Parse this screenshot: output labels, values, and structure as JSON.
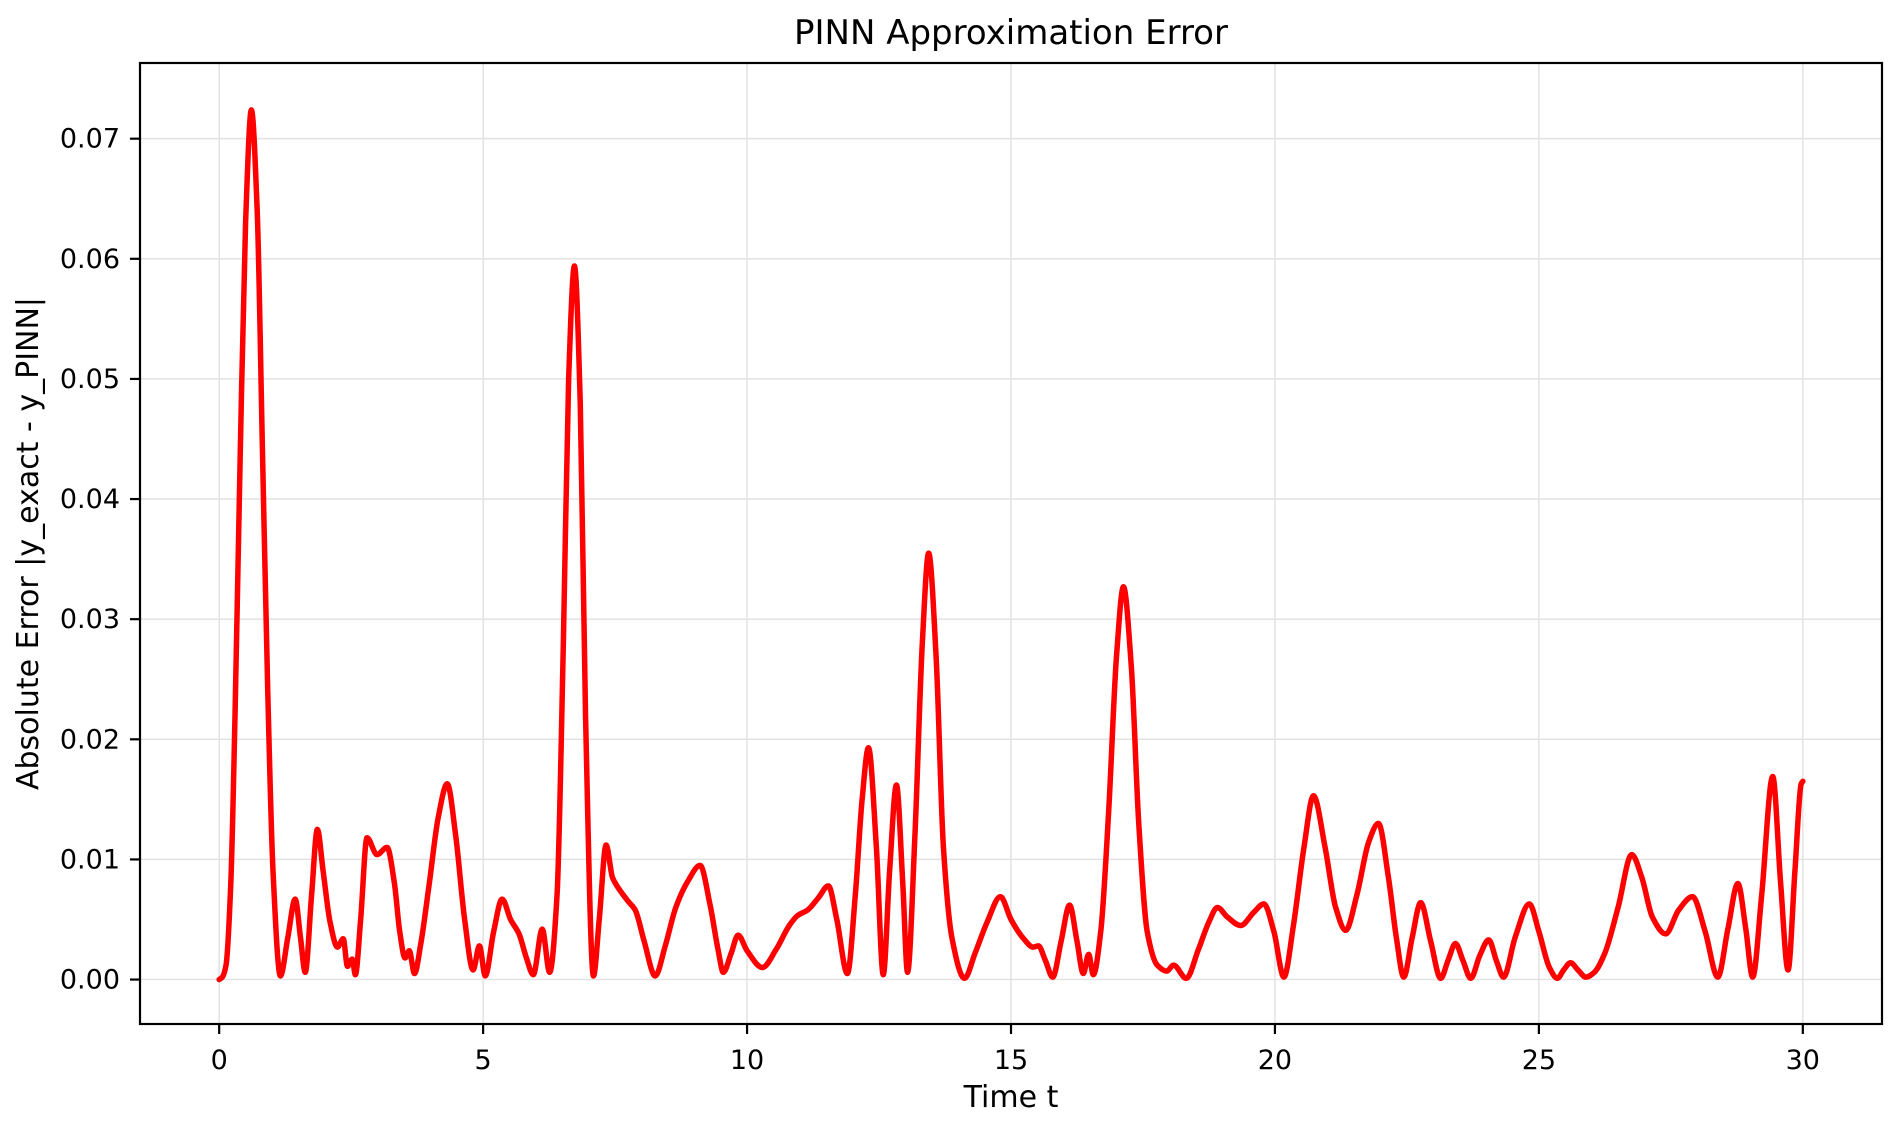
{
  "chart_data": {
    "type": "line",
    "title": "PINN Approximation Error",
    "xlabel": "Time t",
    "ylabel": "Absolute Error |y_exact - y_PINN|",
    "xlim": [
      -1.5,
      31.5
    ],
    "ylim": [
      -0.0037,
      0.0763
    ],
    "grid": true,
    "background_color": "#ffffff",
    "grid_color": "#e2e2e2",
    "spine_color": "#000000",
    "xticks": {
      "values": [
        0,
        5,
        10,
        15,
        20,
        25,
        30
      ],
      "labels": [
        "0",
        "5",
        "10",
        "15",
        "20",
        "25",
        "30"
      ]
    },
    "yticks": {
      "values": [
        0.0,
        0.01,
        0.02,
        0.03,
        0.04,
        0.05,
        0.06,
        0.07
      ],
      "labels": [
        "0.00",
        "0.01",
        "0.02",
        "0.03",
        "0.04",
        "0.05",
        "0.06",
        "0.07"
      ]
    },
    "series": [
      {
        "name": "absolute-error",
        "color": "#ff0000",
        "points": [
          [
            0.0,
            0.0
          ],
          [
            0.06,
            0.0002
          ],
          [
            0.13,
            0.0012
          ],
          [
            0.22,
            0.008
          ],
          [
            0.3,
            0.022
          ],
          [
            0.4,
            0.044
          ],
          [
            0.5,
            0.063
          ],
          [
            0.61,
            0.0724
          ],
          [
            0.72,
            0.064
          ],
          [
            0.82,
            0.044
          ],
          [
            0.92,
            0.024
          ],
          [
            1.02,
            0.009
          ],
          [
            1.16,
            0.0003
          ],
          [
            1.3,
            0.0035
          ],
          [
            1.44,
            0.0067
          ],
          [
            1.54,
            0.0035
          ],
          [
            1.63,
            0.0006
          ],
          [
            1.75,
            0.007
          ],
          [
            1.86,
            0.0125
          ],
          [
            1.97,
            0.009
          ],
          [
            2.1,
            0.0048
          ],
          [
            2.24,
            0.0027
          ],
          [
            2.35,
            0.0034
          ],
          [
            2.43,
            0.0011
          ],
          [
            2.52,
            0.0017
          ],
          [
            2.58,
            0.0004
          ],
          [
            2.68,
            0.005
          ],
          [
            2.8,
            0.0118
          ],
          [
            2.99,
            0.0104
          ],
          [
            3.18,
            0.011
          ],
          [
            3.32,
            0.008
          ],
          [
            3.42,
            0.004
          ],
          [
            3.52,
            0.0018
          ],
          [
            3.6,
            0.0024
          ],
          [
            3.7,
            0.0005
          ],
          [
            3.82,
            0.003
          ],
          [
            3.98,
            0.008
          ],
          [
            4.15,
            0.0135
          ],
          [
            4.32,
            0.0163
          ],
          [
            4.48,
            0.012
          ],
          [
            4.65,
            0.005
          ],
          [
            4.81,
            0.0008
          ],
          [
            4.93,
            0.0028
          ],
          [
            5.04,
            0.0003
          ],
          [
            5.2,
            0.004
          ],
          [
            5.36,
            0.0067
          ],
          [
            5.52,
            0.005
          ],
          [
            5.68,
            0.0038
          ],
          [
            5.82,
            0.0018
          ],
          [
            5.95,
            0.0004
          ],
          [
            6.12,
            0.0042
          ],
          [
            6.26,
            0.0006
          ],
          [
            6.4,
            0.007
          ],
          [
            6.52,
            0.028
          ],
          [
            6.62,
            0.05
          ],
          [
            6.73,
            0.0594
          ],
          [
            6.84,
            0.048
          ],
          [
            6.94,
            0.022
          ],
          [
            7.09,
            0.0003
          ],
          [
            7.2,
            0.005
          ],
          [
            7.33,
            0.0112
          ],
          [
            7.45,
            0.0085
          ],
          [
            7.55,
            0.0077
          ],
          [
            7.75,
            0.0065
          ],
          [
            7.88,
            0.0058
          ],
          [
            8.05,
            0.0032
          ],
          [
            8.26,
            0.0003
          ],
          [
            8.45,
            0.0028
          ],
          [
            8.65,
            0.006
          ],
          [
            8.88,
            0.0082
          ],
          [
            9.11,
            0.0095
          ],
          [
            9.3,
            0.0062
          ],
          [
            9.45,
            0.0025
          ],
          [
            9.55,
            0.0006
          ],
          [
            9.7,
            0.0022
          ],
          [
            9.83,
            0.0037
          ],
          [
            10.0,
            0.0024
          ],
          [
            10.29,
            0.001
          ],
          [
            10.55,
            0.0025
          ],
          [
            10.8,
            0.0045
          ],
          [
            10.95,
            0.0053
          ],
          [
            11.15,
            0.0058
          ],
          [
            11.35,
            0.0068
          ],
          [
            11.54,
            0.0078
          ],
          [
            11.7,
            0.005
          ],
          [
            11.9,
            0.0005
          ],
          [
            12.05,
            0.007
          ],
          [
            12.18,
            0.015
          ],
          [
            12.3,
            0.0193
          ],
          [
            12.45,
            0.011
          ],
          [
            12.58,
            0.0004
          ],
          [
            12.7,
            0.009
          ],
          [
            12.83,
            0.0162
          ],
          [
            12.95,
            0.008
          ],
          [
            13.04,
            0.0006
          ],
          [
            13.18,
            0.012
          ],
          [
            13.32,
            0.028
          ],
          [
            13.44,
            0.0355
          ],
          [
            13.58,
            0.027
          ],
          [
            13.72,
            0.011
          ],
          [
            13.88,
            0.0035
          ],
          [
            14.12,
            0.0001
          ],
          [
            14.32,
            0.0022
          ],
          [
            14.55,
            0.0048
          ],
          [
            14.8,
            0.0069
          ],
          [
            15.0,
            0.005
          ],
          [
            15.24,
            0.0034
          ],
          [
            15.42,
            0.0027
          ],
          [
            15.52,
            0.0028
          ],
          [
            15.65,
            0.0016
          ],
          [
            15.79,
            0.0002
          ],
          [
            15.95,
            0.0032
          ],
          [
            16.11,
            0.0062
          ],
          [
            16.25,
            0.0032
          ],
          [
            16.37,
            0.0005
          ],
          [
            16.47,
            0.0021
          ],
          [
            16.56,
            0.0004
          ],
          [
            16.7,
            0.004
          ],
          [
            16.85,
            0.014
          ],
          [
            17.0,
            0.027
          ],
          [
            17.13,
            0.0327
          ],
          [
            17.28,
            0.026
          ],
          [
            17.42,
            0.013
          ],
          [
            17.58,
            0.004
          ],
          [
            17.77,
            0.0012
          ],
          [
            17.95,
            0.0007
          ],
          [
            18.08,
            0.0012
          ],
          [
            18.32,
            0.0001
          ],
          [
            18.55,
            0.0025
          ],
          [
            18.75,
            0.0048
          ],
          [
            18.91,
            0.006
          ],
          [
            19.1,
            0.0052
          ],
          [
            19.35,
            0.0045
          ],
          [
            19.6,
            0.0056
          ],
          [
            19.79,
            0.0063
          ],
          [
            19.98,
            0.004
          ],
          [
            20.17,
            0.0002
          ],
          [
            20.35,
            0.0045
          ],
          [
            20.55,
            0.011
          ],
          [
            20.73,
            0.0153
          ],
          [
            20.95,
            0.011
          ],
          [
            21.15,
            0.006
          ],
          [
            21.34,
            0.0041
          ],
          [
            21.55,
            0.007
          ],
          [
            21.78,
            0.0115
          ],
          [
            21.96,
            0.013
          ],
          [
            22.15,
            0.0085
          ],
          [
            22.3,
            0.0035
          ],
          [
            22.44,
            0.0002
          ],
          [
            22.6,
            0.0035
          ],
          [
            22.76,
            0.0064
          ],
          [
            22.95,
            0.0032
          ],
          [
            23.14,
            0.0001
          ],
          [
            23.28,
            0.0016
          ],
          [
            23.42,
            0.003
          ],
          [
            23.56,
            0.0016
          ],
          [
            23.71,
            0.0001
          ],
          [
            23.88,
            0.002
          ],
          [
            24.05,
            0.0033
          ],
          [
            24.2,
            0.0015
          ],
          [
            24.33,
            0.0002
          ],
          [
            24.55,
            0.0035
          ],
          [
            24.82,
            0.0063
          ],
          [
            25.0,
            0.004
          ],
          [
            25.2,
            0.001
          ],
          [
            25.35,
            0.0001
          ],
          [
            25.47,
            0.0008
          ],
          [
            25.6,
            0.0014
          ],
          [
            25.74,
            0.0008
          ],
          [
            25.89,
            0.0002
          ],
          [
            26.05,
            0.0006
          ],
          [
            26.25,
            0.0022
          ],
          [
            26.5,
            0.006
          ],
          [
            26.76,
            0.0104
          ],
          [
            26.95,
            0.0085
          ],
          [
            27.15,
            0.0052
          ],
          [
            27.4,
            0.0038
          ],
          [
            27.65,
            0.0058
          ],
          [
            27.91,
            0.0069
          ],
          [
            28.15,
            0.004
          ],
          [
            28.39,
            0.0002
          ],
          [
            28.58,
            0.0042
          ],
          [
            28.77,
            0.008
          ],
          [
            28.92,
            0.0042
          ],
          [
            29.05,
            0.0002
          ],
          [
            29.22,
            0.007
          ],
          [
            29.43,
            0.0169
          ],
          [
            29.58,
            0.008
          ],
          [
            29.72,
            0.0008
          ],
          [
            29.85,
            0.009
          ],
          [
            29.97,
            0.0163
          ],
          [
            30.0,
            0.0165
          ]
        ]
      }
    ]
  }
}
